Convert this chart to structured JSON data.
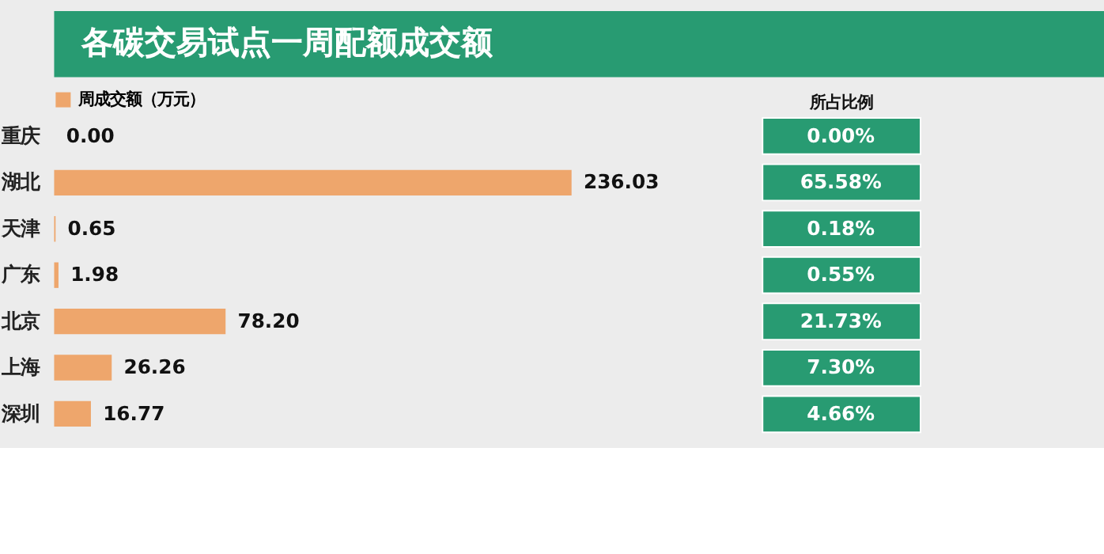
{
  "chart_data": [
    {
      "type": "bar",
      "orientation": "horizontal",
      "title": "各碳交易试点一周配额成交额",
      "legend": "top left",
      "categories": [
        "重庆",
        "湖北",
        "天津",
        "广东",
        "北京",
        "上海",
        "深圳"
      ],
      "series": [
        {
          "name": "周成交额（万元）",
          "color": "#eea66c",
          "values": [
            0.0,
            236.03,
            0.65,
            1.98,
            78.2,
            26.26,
            16.77
          ],
          "value_labels": [
            "0.00",
            "236.03",
            "0.65",
            "1.98",
            "78.20",
            "26.26",
            "16.77"
          ]
        }
      ]
    },
    {
      "type": "other",
      "title": "所占比例",
      "color": "#289b72",
      "value_labels": [
        "0.00%",
        "65.58%",
        "0.18%",
        "0.55%",
        "21.73%",
        "7.30%",
        "4.66%"
      ]
    }
  ]
}
